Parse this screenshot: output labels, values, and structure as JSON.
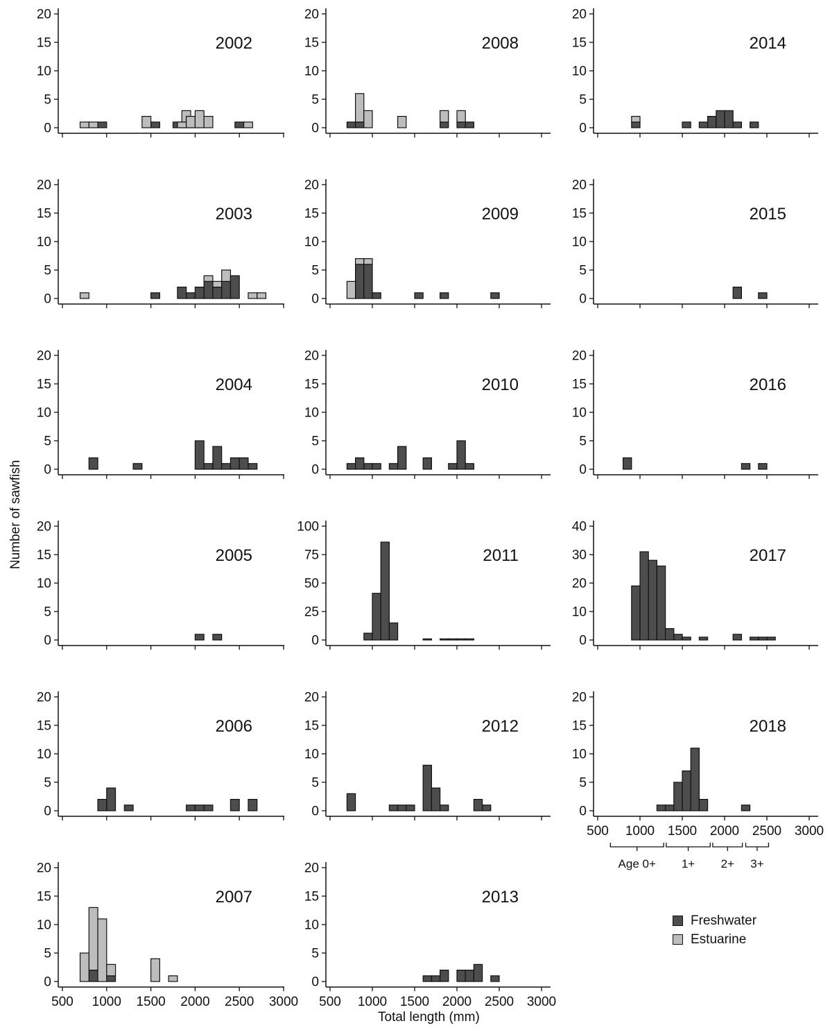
{
  "figure": {
    "y_axis_label": "Number of sawfish",
    "x_axis_label": "Total length (mm)"
  },
  "colors": {
    "freshwater": "#4d4d4d",
    "estuarine": "#bdbdbd",
    "outline": "#111111"
  },
  "legend": {
    "freshwater": "Freshwater",
    "estuarine": "Estuarine"
  },
  "age_classes": [
    "Age 0+",
    "1+",
    "2+",
    "3+"
  ],
  "chart_data": [
    {
      "type": "bar",
      "title": "2002",
      "ylim": [
        0,
        20
      ],
      "yticks": [
        0,
        5,
        10,
        15,
        20
      ],
      "xlim": [
        500,
        3000
      ],
      "xticks": [
        500,
        1000,
        1500,
        2000,
        2500,
        3000
      ],
      "bin_width": 100,
      "series": [
        {
          "name": "Freshwater",
          "bins": [
            [
              950,
              1
            ],
            [
              1550,
              1
            ],
            [
              1800,
              1
            ],
            [
              1900,
              1
            ],
            [
              2000,
              2
            ],
            [
              2500,
              1
            ]
          ]
        },
        {
          "name": "Estuarine",
          "bins": [
            [
              750,
              1
            ],
            [
              850,
              1
            ],
            [
              950,
              0
            ],
            [
              1450,
              2
            ],
            [
              1850,
              1
            ],
            [
              1900,
              2
            ],
            [
              1950,
              2
            ],
            [
              2050,
              3
            ],
            [
              2150,
              2
            ],
            [
              2600,
              1
            ]
          ]
        }
      ]
    },
    {
      "type": "bar",
      "title": "2003",
      "ylim": [
        0,
        20
      ],
      "yticks": [
        0,
        5,
        10,
        15,
        20
      ],
      "xlim": [
        500,
        3000
      ],
      "xticks": [
        500,
        1000,
        1500,
        2000,
        2500,
        3000
      ],
      "bin_width": 100,
      "series": [
        {
          "name": "Freshwater",
          "bins": [
            [
              1550,
              1
            ],
            [
              1850,
              2
            ],
            [
              1950,
              1
            ],
            [
              2050,
              2
            ],
            [
              2150,
              3
            ],
            [
              2250,
              2
            ],
            [
              2350,
              3
            ],
            [
              2450,
              4
            ]
          ]
        },
        {
          "name": "Estuarine",
          "bins": [
            [
              750,
              1
            ],
            [
              2150,
              1
            ],
            [
              2250,
              1
            ],
            [
              2350,
              2
            ],
            [
              2650,
              1
            ],
            [
              2750,
              1
            ]
          ]
        }
      ]
    },
    {
      "type": "bar",
      "title": "2004",
      "ylim": [
        0,
        20
      ],
      "yticks": [
        0,
        5,
        10,
        15,
        20
      ],
      "xlim": [
        500,
        3000
      ],
      "xticks": [
        500,
        1000,
        1500,
        2000,
        2500,
        3000
      ],
      "bin_width": 100,
      "series": [
        {
          "name": "Freshwater",
          "bins": [
            [
              850,
              2
            ],
            [
              1350,
              1
            ],
            [
              2050,
              5
            ],
            [
              2150,
              1
            ],
            [
              2250,
              4
            ],
            [
              2350,
              1
            ],
            [
              2450,
              2
            ],
            [
              2550,
              2
            ],
            [
              2650,
              1
            ]
          ]
        },
        {
          "name": "Estuarine",
          "bins": []
        }
      ]
    },
    {
      "type": "bar",
      "title": "2005",
      "ylim": [
        0,
        20
      ],
      "yticks": [
        0,
        5,
        10,
        15,
        20
      ],
      "xlim": [
        500,
        3000
      ],
      "xticks": [
        500,
        1000,
        1500,
        2000,
        2500,
        3000
      ],
      "bin_width": 100,
      "series": [
        {
          "name": "Freshwater",
          "bins": [
            [
              2050,
              1
            ],
            [
              2250,
              1
            ]
          ]
        },
        {
          "name": "Estuarine",
          "bins": []
        }
      ]
    },
    {
      "type": "bar",
      "title": "2006",
      "ylim": [
        0,
        20
      ],
      "yticks": [
        0,
        5,
        10,
        15,
        20
      ],
      "xlim": [
        500,
        3000
      ],
      "xticks": [
        500,
        1000,
        1500,
        2000,
        2500,
        3000
      ],
      "bin_width": 100,
      "series": [
        {
          "name": "Freshwater",
          "bins": [
            [
              950,
              2
            ],
            [
              1050,
              4
            ],
            [
              1250,
              1
            ],
            [
              1950,
              1
            ],
            [
              2050,
              1
            ],
            [
              2150,
              1
            ],
            [
              2450,
              2
            ],
            [
              2650,
              2
            ]
          ]
        },
        {
          "name": "Estuarine",
          "bins": []
        }
      ]
    },
    {
      "type": "bar",
      "title": "2007",
      "ylim": [
        0,
        20
      ],
      "yticks": [
        0,
        5,
        10,
        15,
        20
      ],
      "xlim": [
        500,
        3000
      ],
      "xticks": [
        500,
        1000,
        1500,
        2000,
        2500,
        3000
      ],
      "bin_width": 100,
      "series": [
        {
          "name": "Freshwater",
          "bins": [
            [
              850,
              2
            ],
            [
              1050,
              1
            ]
          ]
        },
        {
          "name": "Estuarine",
          "bins": [
            [
              750,
              5
            ],
            [
              850,
              11
            ],
            [
              950,
              11
            ],
            [
              1050,
              2
            ],
            [
              1550,
              4
            ],
            [
              1750,
              1
            ]
          ]
        }
      ]
    },
    {
      "type": "bar",
      "title": "2008",
      "ylim": [
        0,
        20
      ],
      "yticks": [
        0,
        5,
        10,
        15,
        20
      ],
      "xlim": [
        500,
        3000
      ],
      "xticks": [
        500,
        1000,
        1500,
        2000,
        2500,
        3000
      ],
      "bin_width": 100,
      "series": [
        {
          "name": "Freshwater",
          "bins": [
            [
              750,
              1
            ],
            [
              850,
              1
            ],
            [
              1850,
              1
            ],
            [
              2050,
              1
            ],
            [
              2150,
              1
            ]
          ]
        },
        {
          "name": "Estuarine",
          "bins": [
            [
              850,
              5
            ],
            [
              950,
              3
            ],
            [
              1350,
              2
            ],
            [
              1850,
              2
            ],
            [
              2050,
              2
            ]
          ]
        }
      ]
    },
    {
      "type": "bar",
      "title": "2009",
      "ylim": [
        0,
        20
      ],
      "yticks": [
        0,
        5,
        10,
        15,
        20
      ],
      "xlim": [
        500,
        3000
      ],
      "xticks": [
        500,
        1000,
        1500,
        2000,
        2500,
        3000
      ],
      "bin_width": 100,
      "series": [
        {
          "name": "Freshwater",
          "bins": [
            [
              850,
              6
            ],
            [
              950,
              6
            ],
            [
              1050,
              1
            ],
            [
              1550,
              1
            ],
            [
              1850,
              1
            ],
            [
              2450,
              1
            ]
          ]
        },
        {
          "name": "Estuarine",
          "bins": [
            [
              750,
              3
            ],
            [
              850,
              1
            ],
            [
              950,
              1
            ]
          ]
        }
      ]
    },
    {
      "type": "bar",
      "title": "2010",
      "ylim": [
        0,
        20
      ],
      "yticks": [
        0,
        5,
        10,
        15,
        20
      ],
      "xlim": [
        500,
        3000
      ],
      "xticks": [
        500,
        1000,
        1500,
        2000,
        2500,
        3000
      ],
      "bin_width": 100,
      "series": [
        {
          "name": "Freshwater",
          "bins": [
            [
              750,
              1
            ],
            [
              850,
              2
            ],
            [
              950,
              1
            ],
            [
              1050,
              1
            ],
            [
              1250,
              1
            ],
            [
              1350,
              4
            ],
            [
              1650,
              2
            ],
            [
              1950,
              1
            ],
            [
              2050,
              5
            ],
            [
              2150,
              1
            ]
          ]
        },
        {
          "name": "Estuarine",
          "bins": []
        }
      ]
    },
    {
      "type": "bar",
      "title": "2011",
      "ylim": [
        0,
        100
      ],
      "yticks": [
        0,
        25,
        50,
        75,
        100
      ],
      "xlim": [
        500,
        3000
      ],
      "xticks": [
        500,
        1000,
        1500,
        2000,
        2500,
        3000
      ],
      "bin_width": 100,
      "series": [
        {
          "name": "Freshwater",
          "bins": [
            [
              950,
              6
            ],
            [
              1050,
              41
            ],
            [
              1150,
              86
            ],
            [
              1250,
              15
            ],
            [
              1650,
              1
            ],
            [
              1850,
              1
            ],
            [
              1950,
              1
            ],
            [
              2050,
              1
            ],
            [
              2150,
              1
            ]
          ]
        },
        {
          "name": "Estuarine",
          "bins": []
        }
      ]
    },
    {
      "type": "bar",
      "title": "2012",
      "ylim": [
        0,
        20
      ],
      "yticks": [
        0,
        5,
        10,
        15,
        20
      ],
      "xlim": [
        500,
        3000
      ],
      "xticks": [
        500,
        1000,
        1500,
        2000,
        2500,
        3000
      ],
      "bin_width": 100,
      "series": [
        {
          "name": "Freshwater",
          "bins": [
            [
              750,
              3
            ],
            [
              1250,
              1
            ],
            [
              1350,
              1
            ],
            [
              1450,
              1
            ],
            [
              1650,
              8
            ],
            [
              1750,
              4
            ],
            [
              1850,
              1
            ],
            [
              2250,
              2
            ],
            [
              2350,
              1
            ]
          ]
        },
        {
          "name": "Estuarine",
          "bins": []
        }
      ]
    },
    {
      "type": "bar",
      "title": "2013",
      "ylim": [
        0,
        20
      ],
      "yticks": [
        0,
        5,
        10,
        15,
        20
      ],
      "xlim": [
        500,
        3000
      ],
      "xticks": [
        500,
        1000,
        1500,
        2000,
        2500,
        3000
      ],
      "bin_width": 100,
      "series": [
        {
          "name": "Freshwater",
          "bins": [
            [
              1650,
              1
            ],
            [
              1750,
              1
            ],
            [
              1850,
              2
            ],
            [
              2050,
              2
            ],
            [
              2150,
              2
            ],
            [
              2250,
              3
            ],
            [
              2450,
              1
            ]
          ]
        },
        {
          "name": "Estuarine",
          "bins": []
        }
      ]
    },
    {
      "type": "bar",
      "title": "2014",
      "ylim": [
        0,
        20
      ],
      "yticks": [
        0,
        5,
        10,
        15,
        20
      ],
      "xlim": [
        500,
        3000
      ],
      "xticks": [
        500,
        1000,
        1500,
        2000,
        2500,
        3000
      ],
      "bin_width": 100,
      "series": [
        {
          "name": "Freshwater",
          "bins": [
            [
              950,
              1
            ],
            [
              1550,
              1
            ],
            [
              1750,
              1
            ],
            [
              1850,
              2
            ],
            [
              1950,
              3
            ],
            [
              2050,
              3
            ],
            [
              2150,
              1
            ],
            [
              2350,
              1
            ]
          ]
        },
        {
          "name": "Estuarine",
          "bins": [
            [
              950,
              1
            ]
          ]
        }
      ]
    },
    {
      "type": "bar",
      "title": "2015",
      "ylim": [
        0,
        20
      ],
      "yticks": [
        0,
        5,
        10,
        15,
        20
      ],
      "xlim": [
        500,
        3000
      ],
      "xticks": [
        500,
        1000,
        1500,
        2000,
        2500,
        3000
      ],
      "bin_width": 100,
      "series": [
        {
          "name": "Freshwater",
          "bins": [
            [
              2150,
              2
            ],
            [
              2450,
              1
            ]
          ]
        },
        {
          "name": "Estuarine",
          "bins": []
        }
      ]
    },
    {
      "type": "bar",
      "title": "2016",
      "ylim": [
        0,
        20
      ],
      "yticks": [
        0,
        5,
        10,
        15,
        20
      ],
      "xlim": [
        500,
        3000
      ],
      "xticks": [
        500,
        1000,
        1500,
        2000,
        2500,
        3000
      ],
      "bin_width": 100,
      "series": [
        {
          "name": "Freshwater",
          "bins": [
            [
              850,
              2
            ],
            [
              2250,
              1
            ],
            [
              2450,
              1
            ]
          ]
        },
        {
          "name": "Estuarine",
          "bins": []
        }
      ]
    },
    {
      "type": "bar",
      "title": "2017",
      "ylim": [
        0,
        40
      ],
      "yticks": [
        0,
        10,
        20,
        30,
        40
      ],
      "xlim": [
        500,
        3000
      ],
      "xticks": [
        500,
        1000,
        1500,
        2000,
        2500,
        3000
      ],
      "bin_width": 100,
      "series": [
        {
          "name": "Freshwater",
          "bins": [
            [
              950,
              19
            ],
            [
              1050,
              31
            ],
            [
              1150,
              28
            ],
            [
              1250,
              26
            ],
            [
              1350,
              4
            ],
            [
              1450,
              2
            ],
            [
              1550,
              1
            ],
            [
              1750,
              1
            ],
            [
              2150,
              2
            ],
            [
              2350,
              1
            ],
            [
              2450,
              1
            ],
            [
              2550,
              1
            ]
          ]
        },
        {
          "name": "Estuarine",
          "bins": []
        }
      ]
    },
    {
      "type": "bar",
      "title": "2018",
      "ylim": [
        0,
        20
      ],
      "yticks": [
        0,
        5,
        10,
        15,
        20
      ],
      "xlim": [
        500,
        3000
      ],
      "xticks": [
        500,
        1000,
        1500,
        2000,
        2500,
        3000
      ],
      "bin_width": 100,
      "series": [
        {
          "name": "Freshwater",
          "bins": [
            [
              1250,
              1
            ],
            [
              1350,
              1
            ],
            [
              1450,
              5
            ],
            [
              1550,
              7
            ],
            [
              1650,
              11
            ],
            [
              1750,
              2
            ],
            [
              2250,
              1
            ]
          ]
        },
        {
          "name": "Estuarine",
          "bins": []
        }
      ]
    }
  ]
}
